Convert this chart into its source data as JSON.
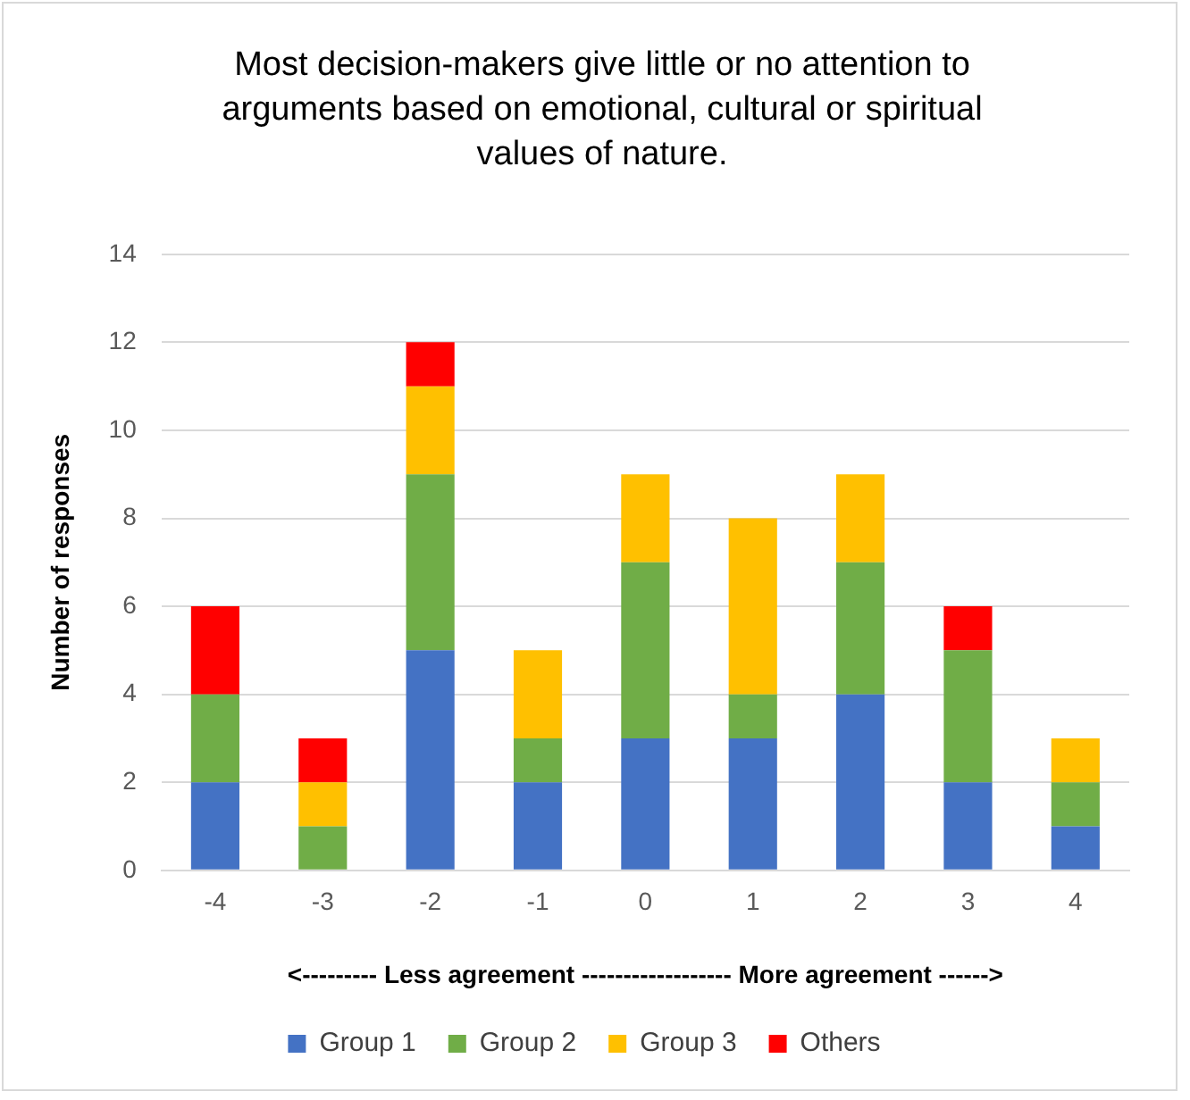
{
  "chart_data": {
    "type": "bar",
    "title": "Most decision-makers give little or no attention to arguments based on emotional, cultural or spiritual values of nature.",
    "xlabel": "<--------- Less agreement ------------------ More agreement ------>",
    "ylabel": "Number of responses",
    "categories": [
      "-4",
      "-3",
      "-2",
      "-1",
      "0",
      "1",
      "2",
      "3",
      "4"
    ],
    "stacked": true,
    "series": [
      {
        "name": "Group 1",
        "color": "#4472c4",
        "values": [
          2,
          0,
          5,
          2,
          3,
          3,
          4,
          2,
          1
        ]
      },
      {
        "name": "Group 2",
        "color": "#70ad47",
        "values": [
          2,
          1,
          4,
          1,
          4,
          1,
          3,
          3,
          1
        ]
      },
      {
        "name": "Group 3",
        "color": "#ffc000",
        "values": [
          0,
          1,
          2,
          2,
          2,
          4,
          2,
          0,
          1
        ]
      },
      {
        "name": "Others",
        "color": "#ff0000",
        "values": [
          2,
          1,
          1,
          0,
          0,
          0,
          0,
          1,
          0
        ]
      }
    ],
    "ylim": [
      0,
      14
    ],
    "yticks": [
      0,
      2,
      4,
      6,
      8,
      10,
      12,
      14
    ],
    "grid": "y",
    "legend": "bottom"
  }
}
